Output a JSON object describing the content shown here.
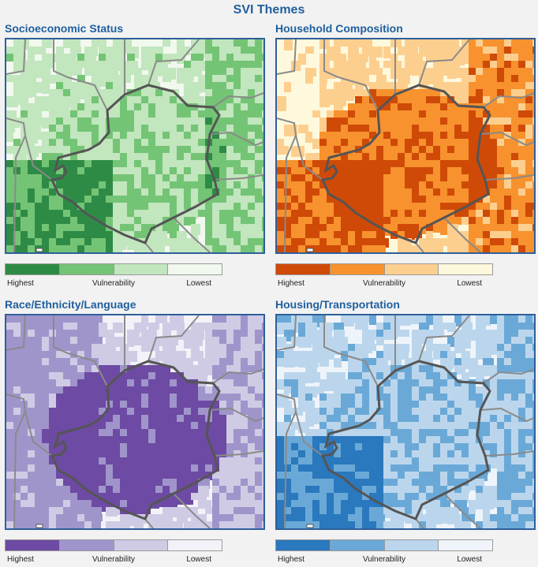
{
  "title": "SVI Themes",
  "legend": {
    "high": "Highest",
    "mid": "Vulnerability",
    "low": "Lowest"
  },
  "panels": [
    {
      "title": "Socioeconomic Status",
      "scheme": "green",
      "colors": [
        "#2e8b45",
        "#74c476",
        "#c2e6bd",
        "#f1f8ee"
      ]
    },
    {
      "title": "Household Composition",
      "scheme": "orange",
      "colors": [
        "#cf4a07",
        "#f7922e",
        "#fdcf8f",
        "#fef9dc"
      ]
    },
    {
      "title": "Race/Ethnicity/Language",
      "scheme": "purple",
      "colors": [
        "#6d4aa3",
        "#a095cb",
        "#cfcbe5",
        "#f3f2f9"
      ]
    },
    {
      "title": "Housing/Transportation",
      "scheme": "blue",
      "colors": [
        "#2a78bd",
        "#6aa9d7",
        "#bbd6ec",
        "#eff4fb"
      ]
    }
  ]
}
